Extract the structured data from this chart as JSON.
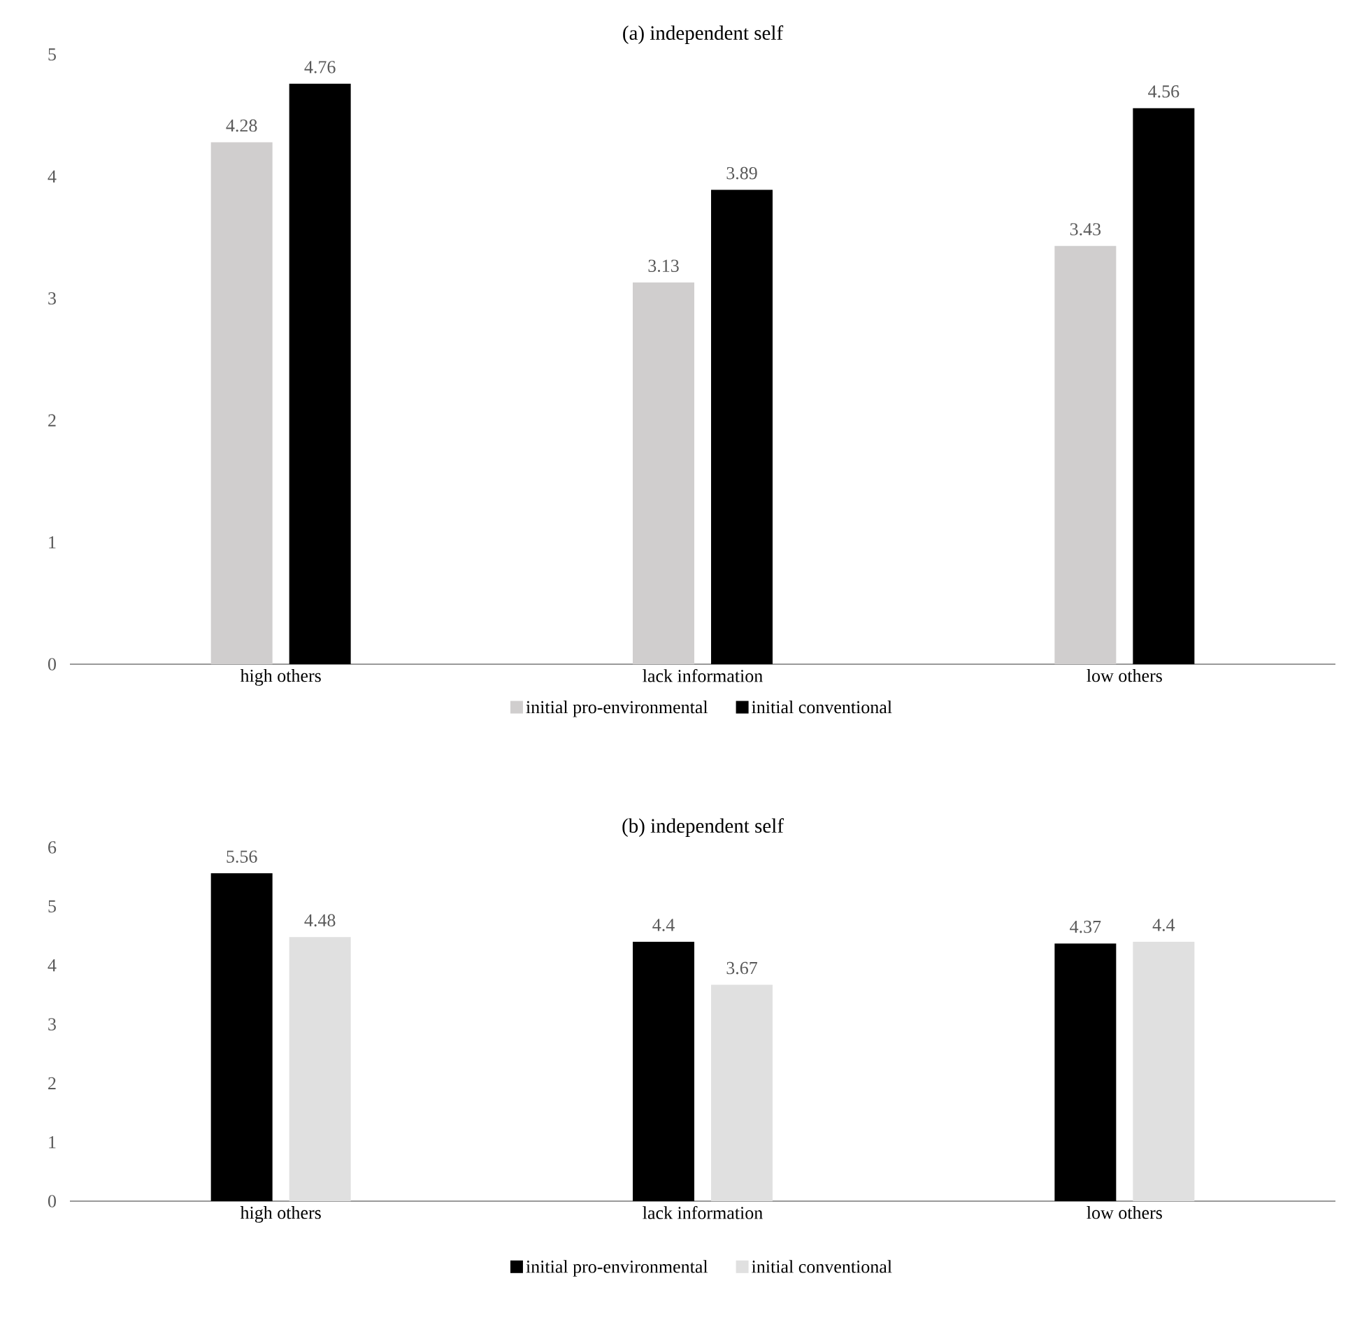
{
  "chart_data": [
    {
      "type": "bar",
      "title": "(a) independent self",
      "categories": [
        "high others",
        "lack information",
        "low others"
      ],
      "series": [
        {
          "name": "initial pro-environmental",
          "color": "#d0cece",
          "values": [
            4.28,
            3.13,
            3.43
          ]
        },
        {
          "name": "initial conventional",
          "color": "#000000",
          "values": [
            4.76,
            3.89,
            4.56
          ]
        }
      ],
      "ylim": [
        0,
        5
      ],
      "yticks": [
        0,
        1,
        2,
        3,
        4,
        5
      ],
      "data_labels": true,
      "legend": "bottom",
      "grid": false
    },
    {
      "type": "bar",
      "title": "(b) independent self",
      "categories": [
        "high others",
        "lack information",
        "low others"
      ],
      "series": [
        {
          "name": "initial pro-environmental",
          "color": "#000000",
          "values": [
            5.56,
            4.4,
            4.37
          ]
        },
        {
          "name": "initial conventional",
          "color": "#e0e0e0",
          "values": [
            4.48,
            3.67,
            4.4
          ]
        }
      ],
      "ylim": [
        0,
        6
      ],
      "yticks": [
        0,
        1,
        2,
        3,
        4,
        5,
        6
      ],
      "data_labels": true,
      "legend": "bottom",
      "grid": false
    }
  ]
}
